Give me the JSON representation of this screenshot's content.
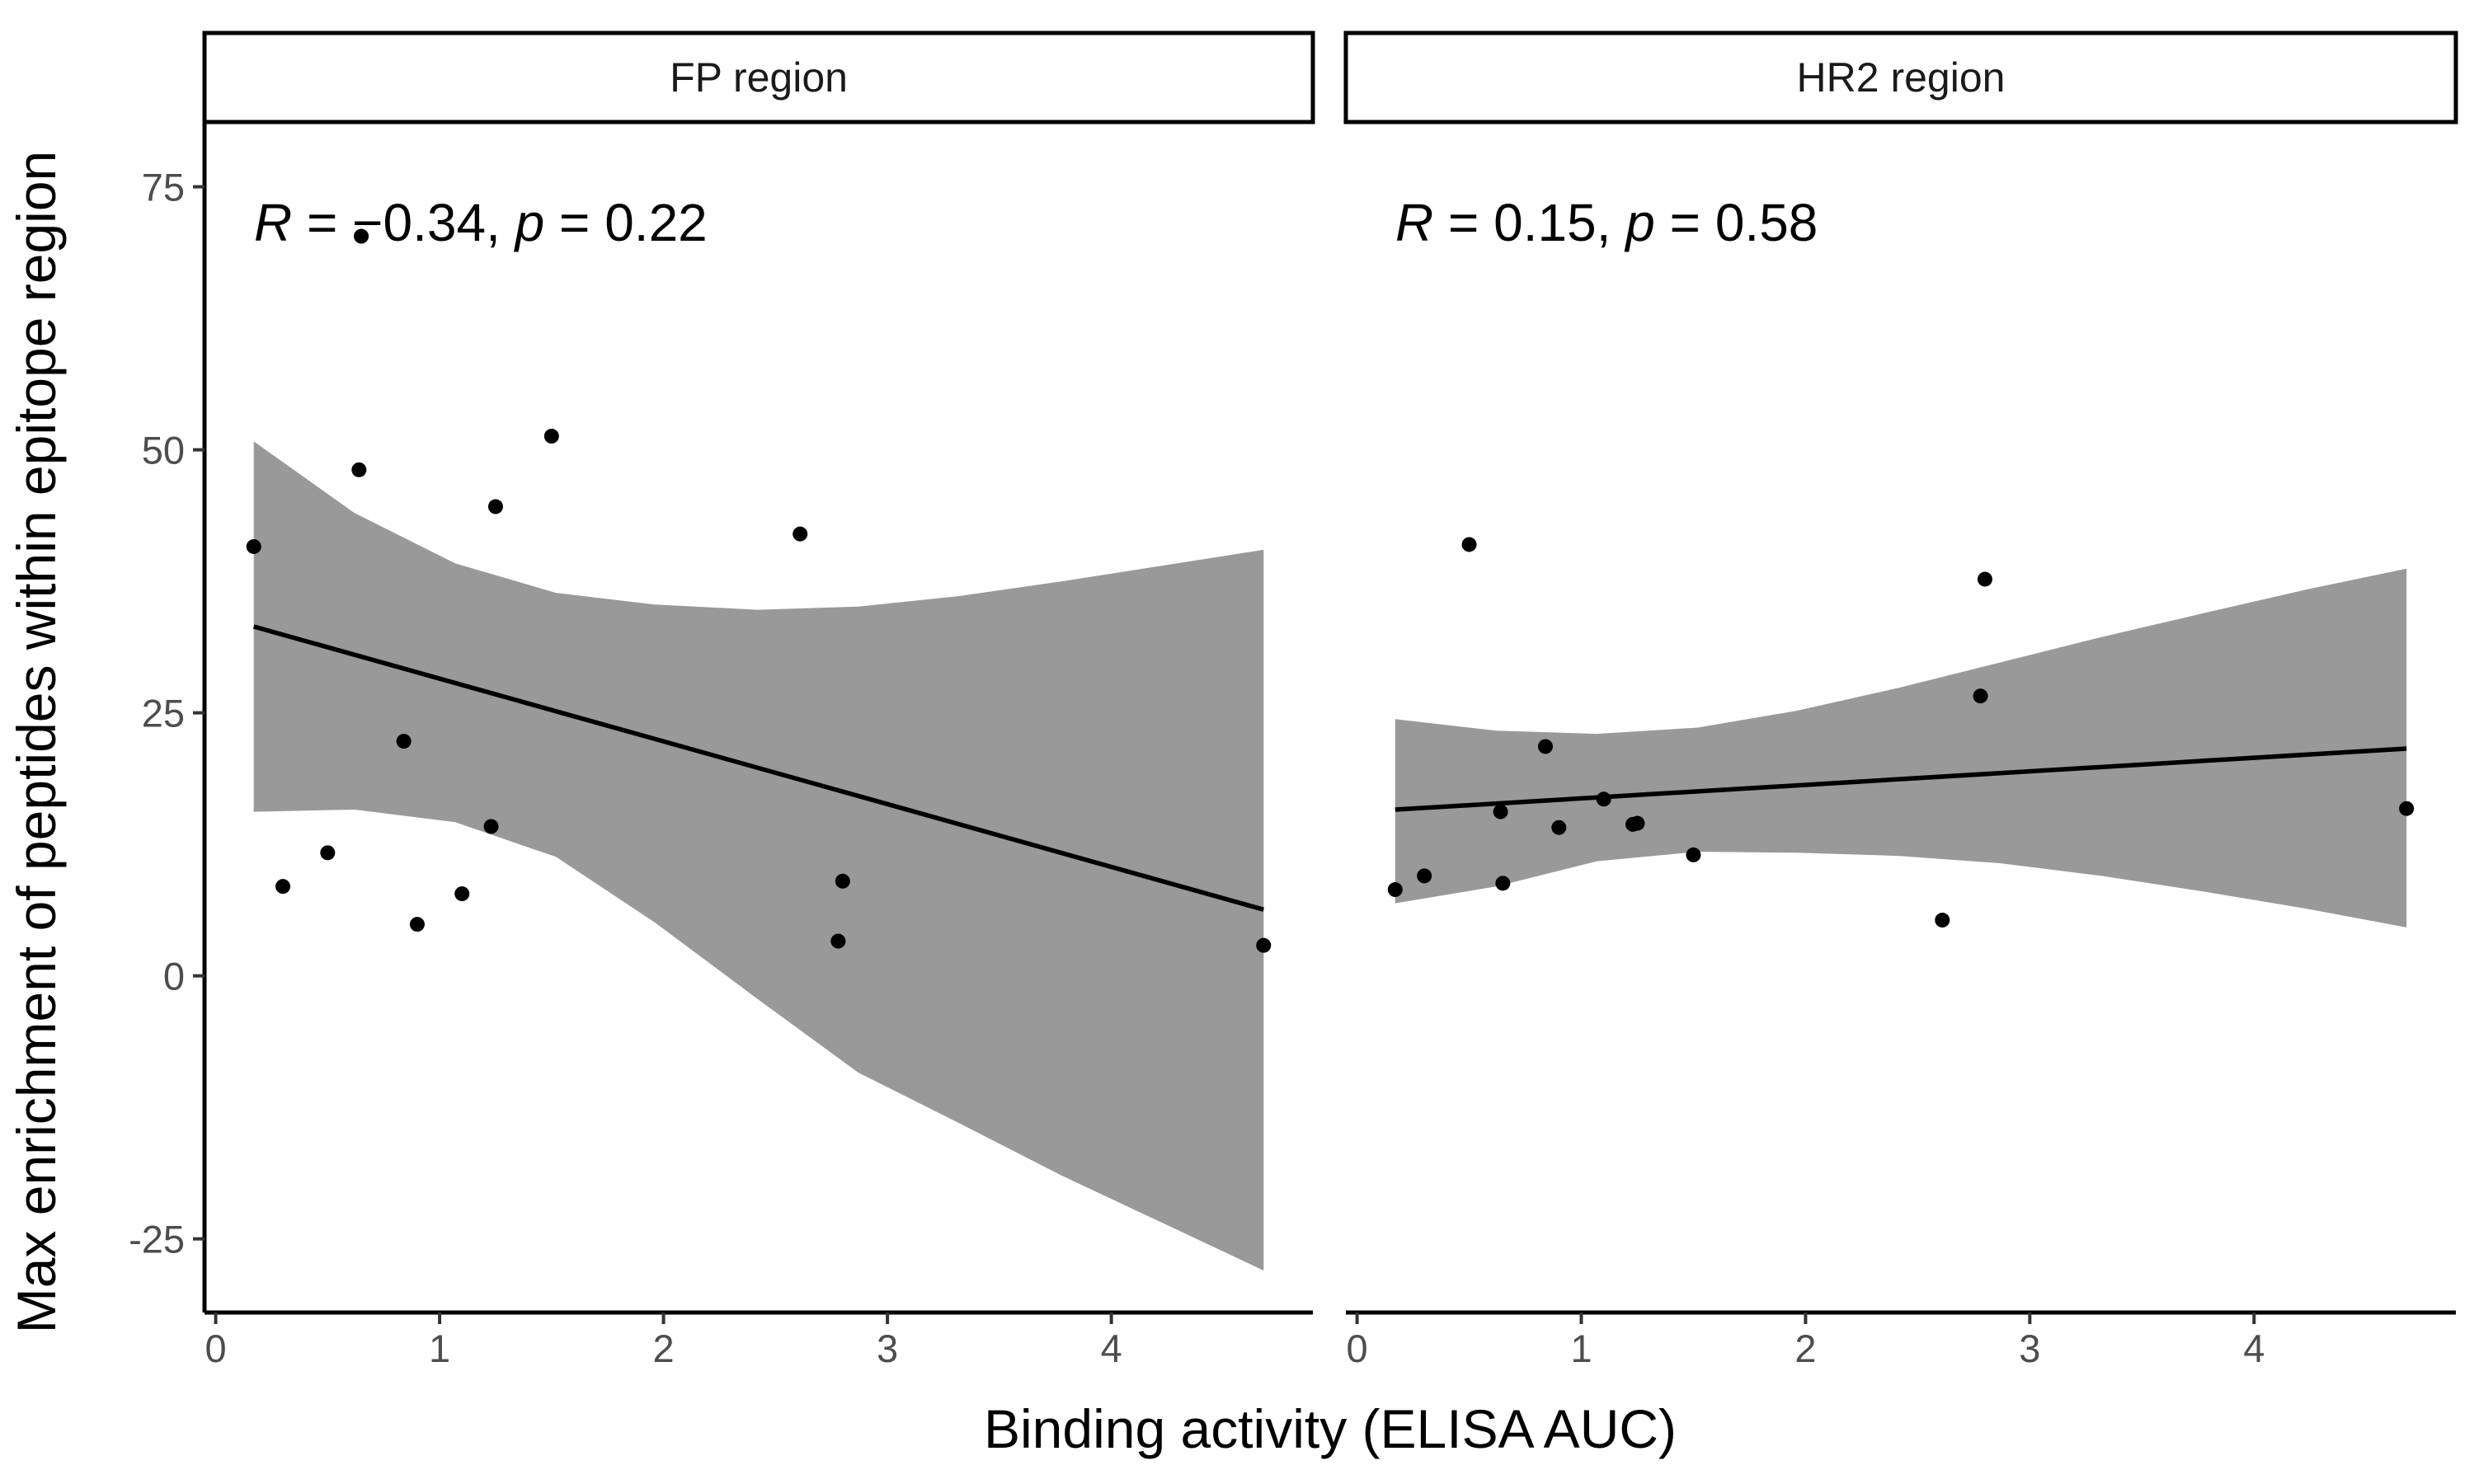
{
  "chart_data": {
    "type": "scatter",
    "xlabel": "Binding activity (ELISA AUC)",
    "ylabel": "Max enrichment of peptides within epitope region",
    "xlim": [
      -0.05,
      4.9
    ],
    "ylim": [
      -32,
      81
    ],
    "x_ticks": [
      "0",
      "1",
      "2",
      "3",
      "4"
    ],
    "y_ticks": [
      "-25",
      "0",
      "25",
      "50",
      "75"
    ],
    "grid": false,
    "panels": [
      {
        "label": "FP region",
        "annotation": {
          "r_label": "R",
          "r_text": " = −0.34, ",
          "p_label": "p",
          "p_text": " = 0.22"
        },
        "points": [
          {
            "x": 0.17,
            "y": 40.8
          },
          {
            "x": 0.3,
            "y": 8.5
          },
          {
            "x": 0.5,
            "y": 11.7
          },
          {
            "x": 0.64,
            "y": 48.1
          },
          {
            "x": 0.65,
            "y": 70.3
          },
          {
            "x": 0.84,
            "y": 22.3
          },
          {
            "x": 0.9,
            "y": 4.9
          },
          {
            "x": 1.1,
            "y": 7.8
          },
          {
            "x": 1.23,
            "y": 14.2
          },
          {
            "x": 1.25,
            "y": 44.6
          },
          {
            "x": 1.5,
            "y": 51.3
          },
          {
            "x": 2.61,
            "y": 42.0
          },
          {
            "x": 2.78,
            "y": 3.3
          },
          {
            "x": 2.8,
            "y": 9.0
          },
          {
            "x": 4.68,
            "y": 2.9
          }
        ],
        "fit": {
          "x": [
            0.17,
            4.68
          ],
          "y": [
            33.2,
            6.3
          ]
        },
        "band": {
          "x": [
            0.17,
            0.62,
            1.07,
            1.52,
            1.96,
            2.42,
            2.87,
            3.32,
            3.78,
            4.23,
            4.68
          ],
          "lower": [
            15.6,
            15.8,
            14.6,
            11.3,
            5.1,
            -2.2,
            -9.2,
            -14.0,
            -19.0,
            -23.5,
            -28.0
          ],
          "upper": [
            50.8,
            44.0,
            39.2,
            36.4,
            35.3,
            34.8,
            35.1,
            36.1,
            37.5,
            39.0,
            40.5
          ]
        }
      },
      {
        "label": "HR2 region",
        "annotation": {
          "r_label": "R",
          "r_text": " = 0.15, ",
          "p_label": "p",
          "p_text": " = 0.58"
        },
        "points": [
          {
            "x": 0.17,
            "y": 8.2
          },
          {
            "x": 0.3,
            "y": 9.5
          },
          {
            "x": 0.5,
            "y": 41.0
          },
          {
            "x": 0.64,
            "y": 15.6
          },
          {
            "x": 0.65,
            "y": 8.8
          },
          {
            "x": 0.84,
            "y": 21.8
          },
          {
            "x": 0.9,
            "y": 14.1
          },
          {
            "x": 1.1,
            "y": 16.8
          },
          {
            "x": 1.23,
            "y": 14.4
          },
          {
            "x": 1.25,
            "y": 14.5
          },
          {
            "x": 1.5,
            "y": 11.5
          },
          {
            "x": 2.61,
            "y": 5.3
          },
          {
            "x": 2.78,
            "y": 26.6
          },
          {
            "x": 2.8,
            "y": 37.7
          },
          {
            "x": 4.68,
            "y": 15.9
          }
        ],
        "fit": {
          "x": [
            0.17,
            4.68
          ],
          "y": [
            15.8,
            21.6
          ]
        },
        "band": {
          "x": [
            0.17,
            0.62,
            1.07,
            1.52,
            1.96,
            2.42,
            2.87,
            3.32,
            3.78,
            4.23,
            4.68
          ],
          "lower": [
            6.9,
            8.5,
            10.9,
            11.8,
            11.7,
            11.4,
            10.7,
            9.5,
            8.0,
            6.4,
            4.6
          ],
          "upper": [
            24.4,
            23.3,
            23.0,
            23.6,
            25.2,
            27.4,
            29.8,
            32.2,
            34.5,
            36.7,
            38.7
          ]
        }
      }
    ]
  }
}
